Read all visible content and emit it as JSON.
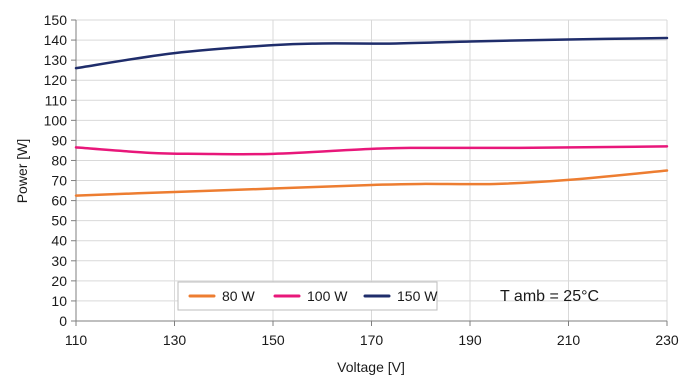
{
  "chart_data": {
    "type": "line",
    "title": "",
    "xlabel": "Voltage [V]",
    "ylabel": "Power [W]",
    "xlim": [
      110,
      230
    ],
    "ylim": [
      0,
      150
    ],
    "x_ticks": [
      "110",
      "130",
      "150",
      "170",
      "190",
      "210",
      "230"
    ],
    "y_ticks": [
      "0",
      "10",
      "20",
      "30",
      "40",
      "50",
      "60",
      "70",
      "80",
      "90",
      "100",
      "110",
      "120",
      "130",
      "140",
      "150"
    ],
    "grid": true,
    "legend_position": "bottom-center",
    "annotation": "T amb = 25°C",
    "series": [
      {
        "name": "80 W",
        "color": "#ED7D31",
        "points": [
          [
            110,
            62.5
          ],
          [
            130,
            64.3
          ],
          [
            150,
            66.0
          ],
          [
            170,
            67.8
          ],
          [
            180,
            68.3
          ],
          [
            195,
            68.3
          ],
          [
            210,
            70.3
          ],
          [
            230,
            75.0
          ]
        ]
      },
      {
        "name": "100 W",
        "color": "#E8177A",
        "points": [
          [
            110,
            86.5
          ],
          [
            125,
            83.8
          ],
          [
            135,
            83.3
          ],
          [
            150,
            83.3
          ],
          [
            170,
            85.8
          ],
          [
            180,
            86.3
          ],
          [
            200,
            86.3
          ],
          [
            230,
            87.0
          ]
        ]
      },
      {
        "name": "150 W",
        "color": "#1F2D6B",
        "points": [
          [
            110,
            126.0
          ],
          [
            130,
            133.5
          ],
          [
            150,
            137.5
          ],
          [
            160,
            138.3
          ],
          [
            175,
            138.3
          ],
          [
            190,
            139.3
          ],
          [
            210,
            140.3
          ],
          [
            230,
            141.0
          ]
        ]
      }
    ]
  }
}
